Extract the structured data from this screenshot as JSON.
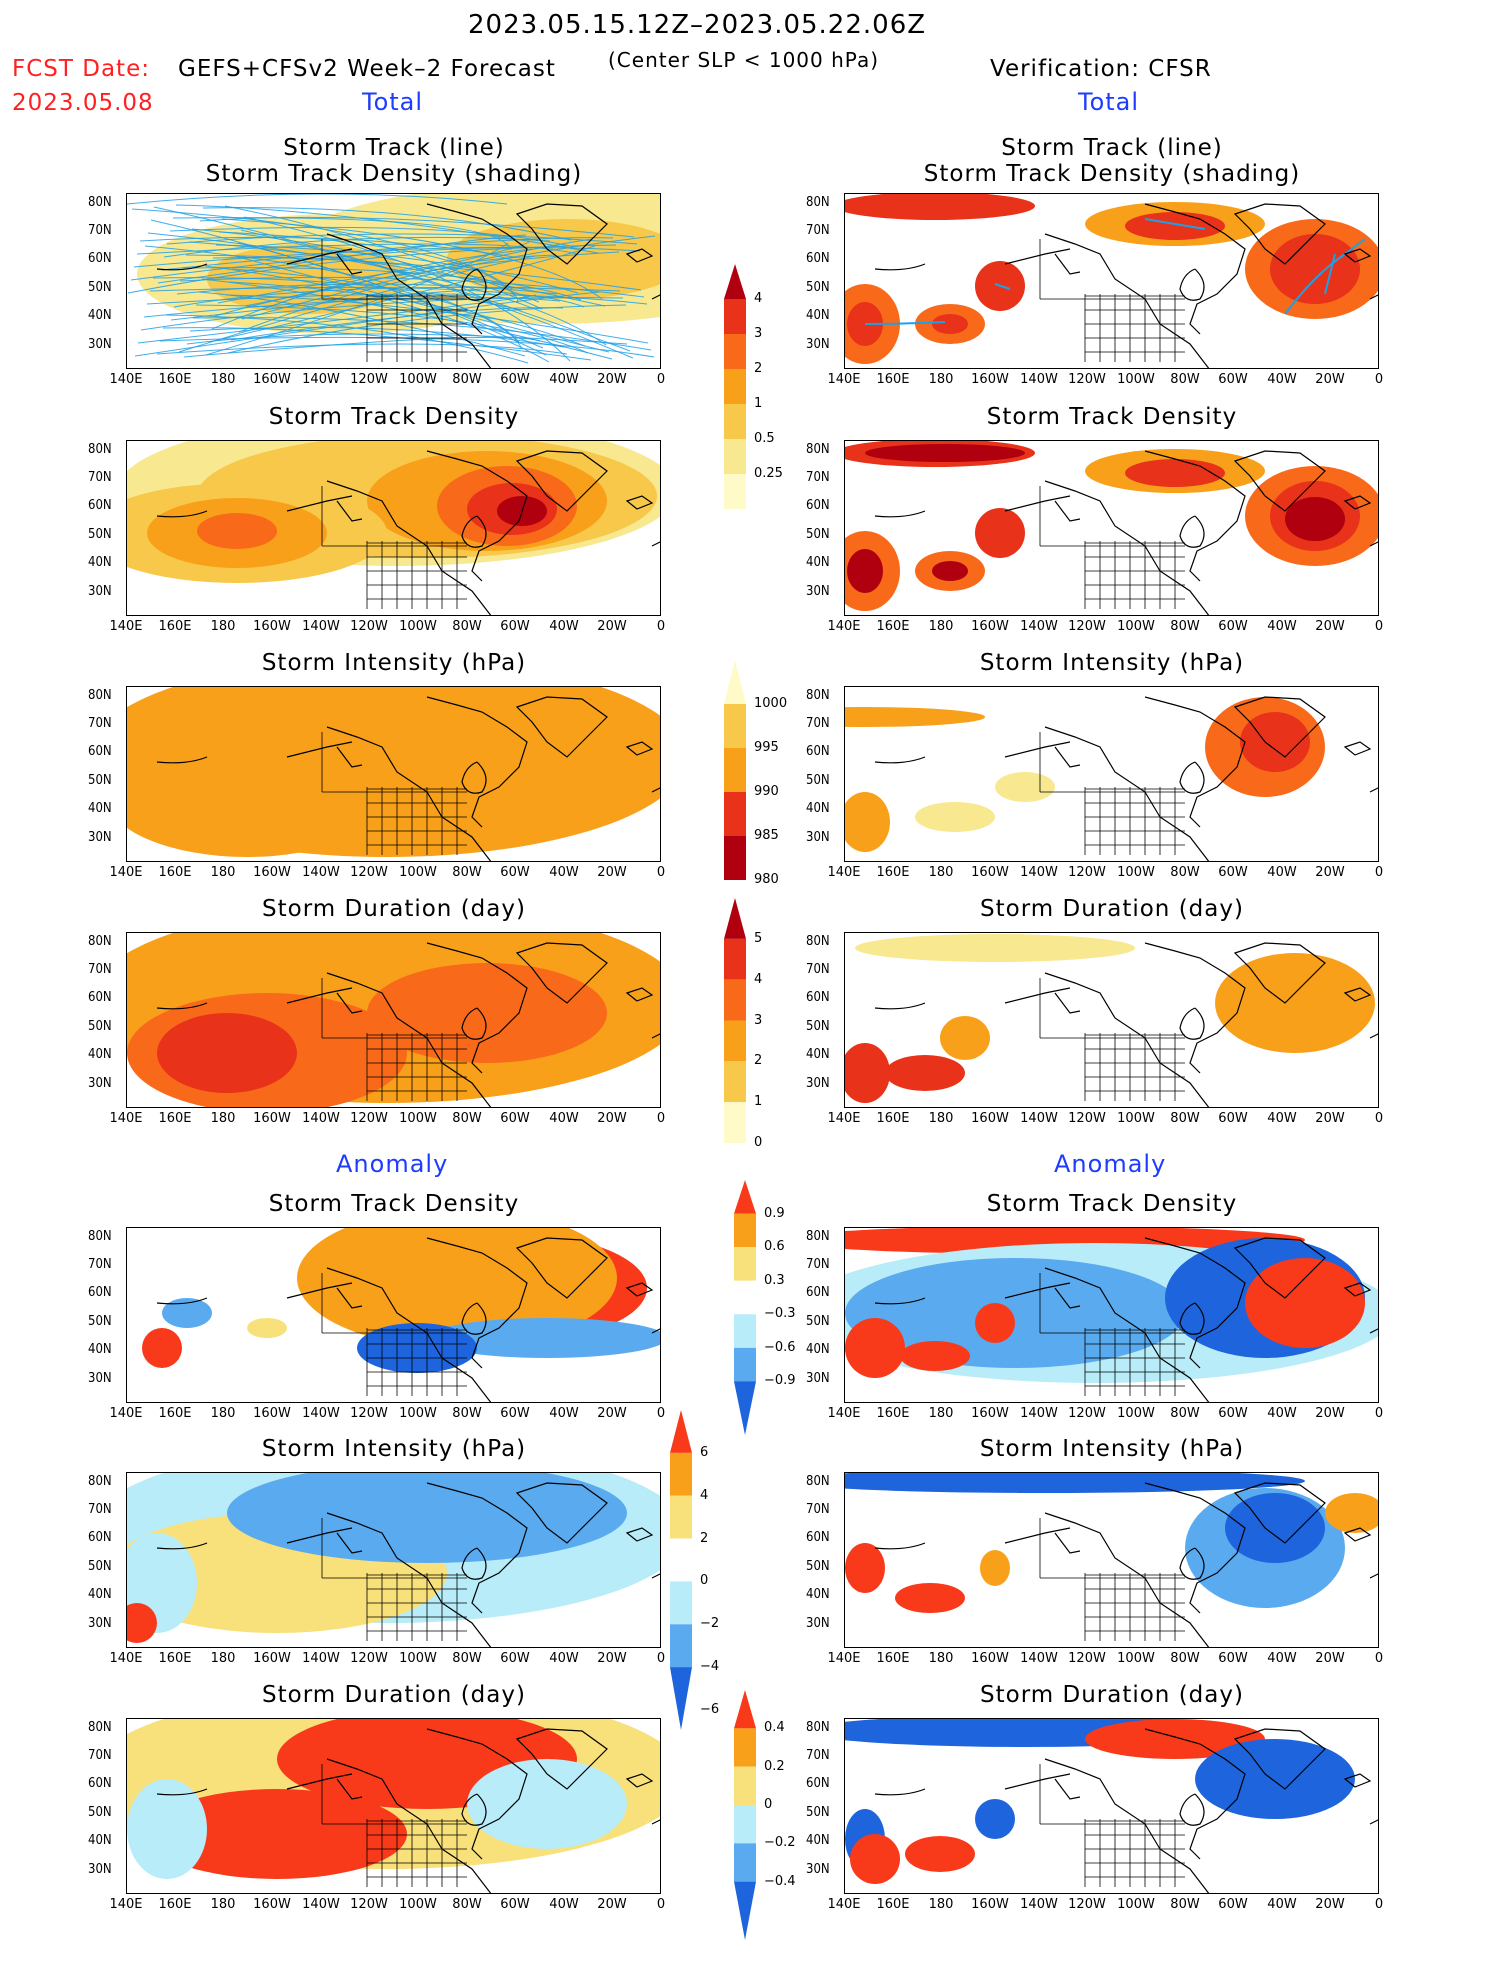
{
  "header": {
    "period": "2023.05.15.12Z–2023.05.22.06Z",
    "fcst_label": "FCST Date:",
    "fcst_date": "2023.05.08",
    "model_label": "GEFS+CFSv2 Week–2 Forecast",
    "criterion": "(Center SLP < 1000 hPa)",
    "verification": "Verification: CFSR"
  },
  "sections": {
    "total_left": "Total",
    "total_right": "Total",
    "anomaly_left": "Anomaly",
    "anomaly_right": "Anomaly"
  },
  "panel_titles": {
    "track_line": "Storm Track (line)",
    "track_density_shading": "Storm Track Density (shading)",
    "track_density": "Storm Track Density",
    "intensity": "Storm Intensity (hPa)",
    "duration": "Storm Duration (day)"
  },
  "axes": {
    "lat_ticks": [
      "80N",
      "70N",
      "60N",
      "50N",
      "40N",
      "30N"
    ],
    "lon_ticks": [
      "140E",
      "160E",
      "180",
      "160W",
      "140W",
      "120W",
      "100W",
      "80W",
      "60W",
      "40W",
      "20W",
      "0"
    ]
  },
  "colorbars": {
    "density": {
      "labels": [
        "4",
        "3",
        "2",
        "1",
        "0.5",
        "0.25"
      ],
      "colors": [
        "#b0000f",
        "#e8321a",
        "#f86a1a",
        "#f8a01a",
        "#f8c84a",
        "#f8e890",
        "#fffbc8"
      ]
    },
    "intensity": {
      "labels": [
        "1000",
        "995",
        "990",
        "985",
        "980"
      ],
      "colors": [
        "#fffbc8",
        "#f8c84a",
        "#f8a01a",
        "#e8321a",
        "#b0000f"
      ]
    },
    "duration": {
      "labels": [
        "5",
        "4",
        "3",
        "2",
        "1",
        "0"
      ],
      "colors": [
        "#b0000f",
        "#e8321a",
        "#f86a1a",
        "#f8a01a",
        "#f8c84a",
        "#fffbc8"
      ]
    },
    "anom_density": {
      "labels": [
        "0.9",
        "0.6",
        "0.3",
        "−0.3",
        "−0.6",
        "−0.9"
      ],
      "colors": [
        "#f83a1a",
        "#f8a01a",
        "#f8e07a",
        "#ffffff",
        "#b8ecf8",
        "#5aaaf0",
        "#1e64dc"
      ]
    },
    "anom_intensity": {
      "labels": [
        "6",
        "4",
        "2",
        "0",
        "−2",
        "−4",
        "−6"
      ],
      "colors": [
        "#f83a1a",
        "#f8a01a",
        "#f8e07a",
        "#ffffff",
        "#b8ecf8",
        "#5aaaf0",
        "#1e64dc"
      ]
    },
    "anom_duration": {
      "labels": [
        "0.4",
        "0.2",
        "0",
        "−0.2",
        "−0.4"
      ],
      "colors": [
        "#f83a1a",
        "#f8a01a",
        "#f8e07a",
        "#b8ecf8",
        "#5aaaf0",
        "#1e64dc"
      ]
    }
  }
}
